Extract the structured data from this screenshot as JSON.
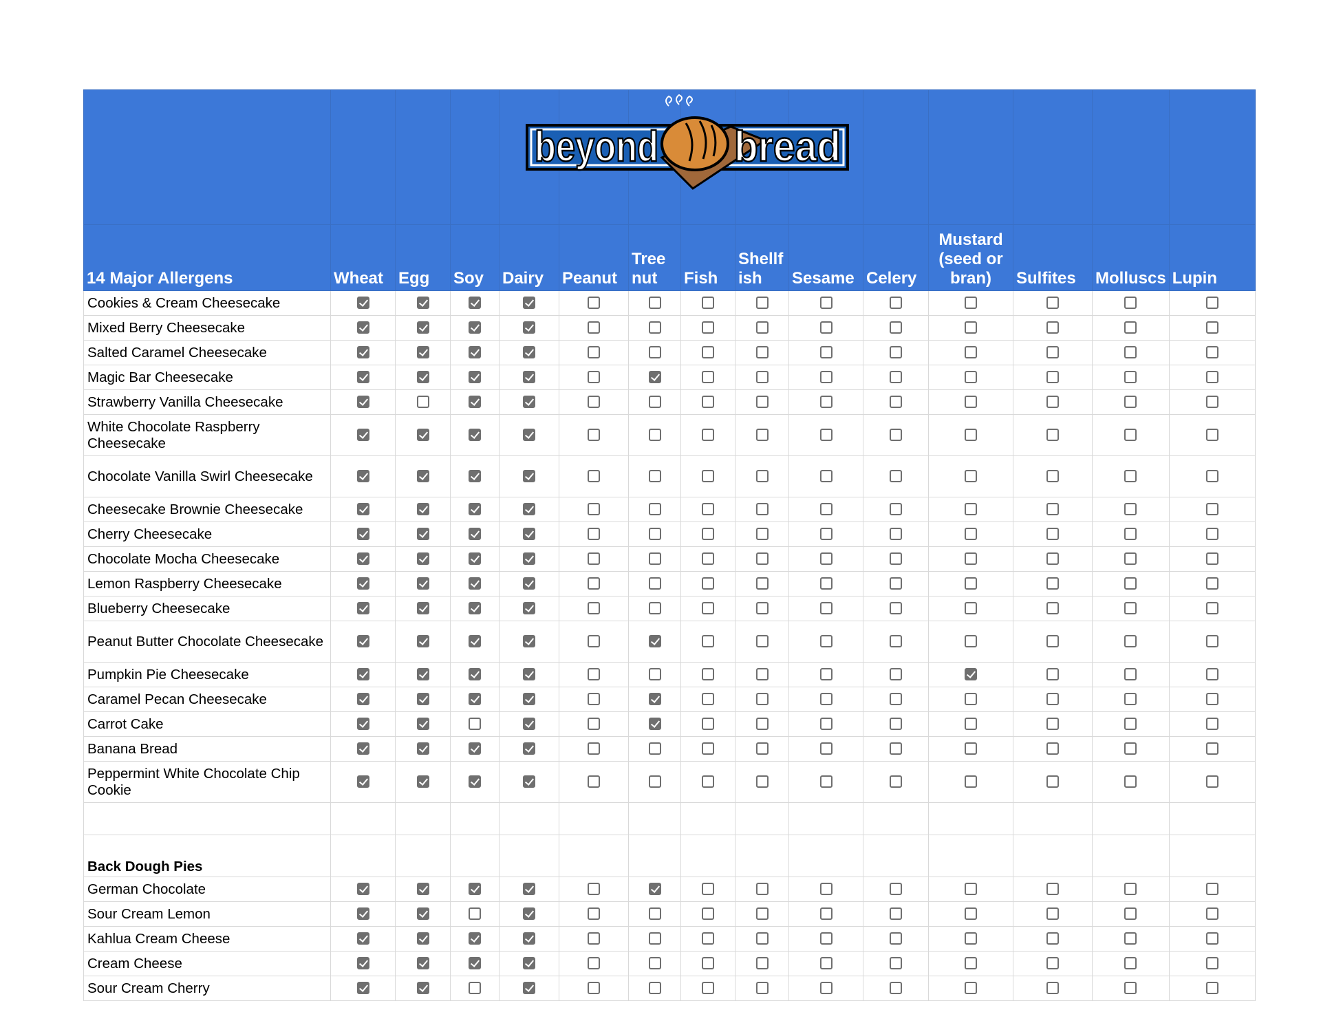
{
  "logo": {
    "text": "beyond bread",
    "icon": "bread-loaf-logo"
  },
  "header": {
    "title": "14 Major Allergens",
    "columns": [
      "Wheat",
      "Egg",
      "Soy",
      "Dairy",
      "Peanut",
      "Tree nut",
      "Fish",
      "Shellf ish",
      "Sesame",
      "Celery",
      "Mustard (seed or bran)",
      "Sulfites",
      "Molluscs",
      "Lupin"
    ]
  },
  "colors": {
    "header_bg": "#3c78d8",
    "checkbox": "#6f6f6f"
  },
  "cheesecakes": [
    {
      "name": "Cookies & Cream Cheesecake",
      "checks": [
        1,
        1,
        1,
        1,
        0,
        0,
        0,
        0,
        0,
        0,
        0,
        0,
        0,
        0
      ]
    },
    {
      "name": "Mixed Berry Cheesecake",
      "checks": [
        1,
        1,
        1,
        1,
        0,
        0,
        0,
        0,
        0,
        0,
        0,
        0,
        0,
        0
      ]
    },
    {
      "name": "Salted Caramel Cheesecake",
      "checks": [
        1,
        1,
        1,
        1,
        0,
        0,
        0,
        0,
        0,
        0,
        0,
        0,
        0,
        0
      ]
    },
    {
      "name": "Magic Bar Cheesecake",
      "checks": [
        1,
        1,
        1,
        1,
        0,
        1,
        0,
        0,
        0,
        0,
        0,
        0,
        0,
        0
      ]
    },
    {
      "name": "Strawberry Vanilla Cheesecake",
      "checks": [
        1,
        0,
        1,
        1,
        0,
        0,
        0,
        0,
        0,
        0,
        0,
        0,
        0,
        0
      ]
    },
    {
      "name": "White Chocolate Raspberry Cheesecake",
      "checks": [
        1,
        1,
        1,
        1,
        0,
        0,
        0,
        0,
        0,
        0,
        0,
        0,
        0,
        0
      ]
    },
    {
      "name": "Chocolate Vanilla Swirl Cheesecake",
      "checks": [
        1,
        1,
        1,
        1,
        0,
        0,
        0,
        0,
        0,
        0,
        0,
        0,
        0,
        0
      ]
    },
    {
      "name": "Cheesecake Brownie Cheesecake",
      "checks": [
        1,
        1,
        1,
        1,
        0,
        0,
        0,
        0,
        0,
        0,
        0,
        0,
        0,
        0
      ]
    },
    {
      "name": "Cherry Cheesecake",
      "checks": [
        1,
        1,
        1,
        1,
        0,
        0,
        0,
        0,
        0,
        0,
        0,
        0,
        0,
        0
      ]
    },
    {
      "name": "Chocolate Mocha Cheesecake",
      "checks": [
        1,
        1,
        1,
        1,
        0,
        0,
        0,
        0,
        0,
        0,
        0,
        0,
        0,
        0
      ]
    },
    {
      "name": "Lemon Raspberry Cheesecake",
      "checks": [
        1,
        1,
        1,
        1,
        0,
        0,
        0,
        0,
        0,
        0,
        0,
        0,
        0,
        0
      ]
    },
    {
      "name": "Blueberry Cheesecake",
      "checks": [
        1,
        1,
        1,
        1,
        0,
        0,
        0,
        0,
        0,
        0,
        0,
        0,
        0,
        0
      ]
    },
    {
      "name": "Peanut Butter Chocolate Cheesecake",
      "checks": [
        1,
        1,
        1,
        1,
        0,
        1,
        0,
        0,
        0,
        0,
        0,
        0,
        0,
        0
      ]
    },
    {
      "name": "Pumpkin Pie Cheesecake",
      "checks": [
        1,
        1,
        1,
        1,
        0,
        0,
        0,
        0,
        0,
        0,
        1,
        0,
        0,
        0
      ]
    },
    {
      "name": "Caramel Pecan Cheesecake",
      "checks": [
        1,
        1,
        1,
        1,
        0,
        1,
        0,
        0,
        0,
        0,
        0,
        0,
        0,
        0
      ]
    },
    {
      "name": "Carrot Cake",
      "checks": [
        1,
        1,
        0,
        1,
        0,
        1,
        0,
        0,
        0,
        0,
        0,
        0,
        0,
        0
      ]
    },
    {
      "name": "Banana Bread",
      "checks": [
        1,
        1,
        1,
        1,
        0,
        0,
        0,
        0,
        0,
        0,
        0,
        0,
        0,
        0
      ]
    },
    {
      "name": "Peppermint White Chocolate Chip Cookie",
      "checks": [
        1,
        1,
        1,
        1,
        0,
        0,
        0,
        0,
        0,
        0,
        0,
        0,
        0,
        0
      ]
    }
  ],
  "pies_section": {
    "title": "Back Dough Pies"
  },
  "pies": [
    {
      "name": "German Chocolate",
      "checks": [
        1,
        1,
        1,
        1,
        0,
        1,
        0,
        0,
        0,
        0,
        0,
        0,
        0,
        0
      ]
    },
    {
      "name": "Sour Cream Lemon",
      "checks": [
        1,
        1,
        0,
        1,
        0,
        0,
        0,
        0,
        0,
        0,
        0,
        0,
        0,
        0
      ]
    },
    {
      "name": "Kahlua Cream Cheese",
      "checks": [
        1,
        1,
        1,
        1,
        0,
        0,
        0,
        0,
        0,
        0,
        0,
        0,
        0,
        0
      ]
    },
    {
      "name": "Cream Cheese",
      "checks": [
        1,
        1,
        1,
        1,
        0,
        0,
        0,
        0,
        0,
        0,
        0,
        0,
        0,
        0
      ]
    },
    {
      "name": "Sour Cream Cherry",
      "checks": [
        1,
        1,
        0,
        1,
        0,
        0,
        0,
        0,
        0,
        0,
        0,
        0,
        0,
        0
      ]
    }
  ]
}
